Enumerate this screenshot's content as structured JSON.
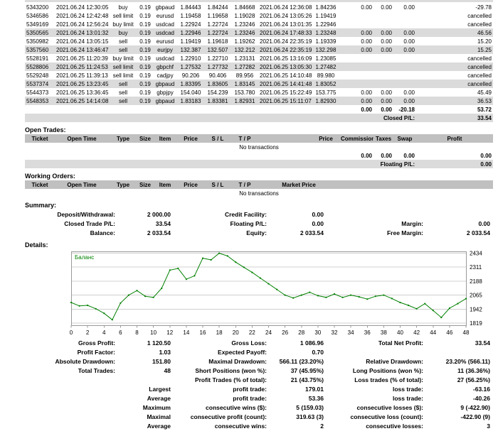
{
  "colors": {
    "header_bg": "#C0C0C0",
    "row_shade": "#DBDBDB",
    "chart_line": "#008000",
    "grid_line": "#D0D0D0",
    "chart_border": "#999999"
  },
  "history": {
    "cancelled_label": "cancelled",
    "rows": [
      {
        "ticket": "5343200",
        "open_time": "2021.06.24 12:30:05",
        "type": "buy",
        "size": "0.19",
        "item": "gbpaud",
        "price": "1.84443",
        "sl": "1.84244",
        "tp": "1.84668",
        "close_time": "2021.06.24 12:36:08",
        "close_price": "1.84236",
        "commission": "0.00",
        "taxes": "0.00",
        "swap": "0.00",
        "profit": "-29.78",
        "cancelled": false,
        "shaded": false
      },
      {
        "ticket": "5346586",
        "open_time": "2021.06.24 12:42:48",
        "type": "sell limit",
        "size": "0.19",
        "item": "eurusd",
        "price": "1.19458",
        "sl": "1.19658",
        "tp": "1.19028",
        "close_time": "2021.06.24 13:05:26",
        "close_price": "1.19419",
        "commission": "",
        "taxes": "",
        "swap": "",
        "profit": "",
        "cancelled": true,
        "shaded": false
      },
      {
        "ticket": "5349169",
        "open_time": "2021.06.24 12:56:24",
        "type": "buy limit",
        "size": "0.19",
        "item": "usdcad",
        "price": "1.22924",
        "sl": "1.22724",
        "tp": "1.23246",
        "close_time": "2021.06.24 13:01:35",
        "close_price": "1.22946",
        "commission": "",
        "taxes": "",
        "swap": "",
        "profit": "",
        "cancelled": true,
        "shaded": false
      },
      {
        "ticket": "5350565",
        "open_time": "2021.06.24 13:01:32",
        "type": "buy",
        "size": "0.19",
        "item": "usdcad",
        "price": "1.22946",
        "sl": "1.22724",
        "tp": "1.23246",
        "close_time": "2021.06.24 17:48:33",
        "close_price": "1.23248",
        "commission": "0.00",
        "taxes": "0.00",
        "swap": "0.00",
        "profit": "46.56",
        "cancelled": false,
        "shaded": true
      },
      {
        "ticket": "5350982",
        "open_time": "2021.06.24 13:05:15",
        "type": "sell",
        "size": "0.19",
        "item": "eurusd",
        "price": "1.19419",
        "sl": "1.19618",
        "tp": "1.19262",
        "close_time": "2021.06.24 22:35:19",
        "close_price": "1.19339",
        "commission": "0.00",
        "taxes": "0.00",
        "swap": "0.00",
        "profit": "15.20",
        "cancelled": false,
        "shaded": false
      },
      {
        "ticket": "5357560",
        "open_time": "2021.06.24 13:46:47",
        "type": "sell",
        "size": "0.19",
        "item": "eurjpy",
        "price": "132.387",
        "sl": "132.507",
        "tp": "132.212",
        "close_time": "2021.06.24 22:35:19",
        "close_price": "132.298",
        "commission": "0.00",
        "taxes": "0.00",
        "swap": "0.00",
        "profit": "15.25",
        "cancelled": false,
        "shaded": true
      },
      {
        "ticket": "5528191",
        "open_time": "2021.06.25 11:20:39",
        "type": "buy limit",
        "size": "0.19",
        "item": "usdcad",
        "price": "1.22910",
        "sl": "1.22710",
        "tp": "1.23131",
        "close_time": "2021.06.25 13:16:09",
        "close_price": "1.23085",
        "commission": "",
        "taxes": "",
        "swap": "",
        "profit": "",
        "cancelled": true,
        "shaded": false
      },
      {
        "ticket": "5528806",
        "open_time": "2021.06.25 11:24:53",
        "type": "sell limit",
        "size": "0.19",
        "item": "gbpchf",
        "price": "1.27532",
        "sl": "1.27732",
        "tp": "1.27282",
        "close_time": "2021.06.25 13:05:30",
        "close_price": "1.27482",
        "commission": "",
        "taxes": "",
        "swap": "",
        "profit": "",
        "cancelled": true,
        "shaded": true
      },
      {
        "ticket": "5529248",
        "open_time": "2021.06.25 11:39:13",
        "type": "sell limit",
        "size": "0.19",
        "item": "cadjpy",
        "price": "90.206",
        "sl": "90.406",
        "tp": "89.956",
        "close_time": "2021.06.25 14:10:48",
        "close_price": "89.980",
        "commission": "",
        "taxes": "",
        "swap": "",
        "profit": "",
        "cancelled": true,
        "shaded": false
      },
      {
        "ticket": "5537374",
        "open_time": "2021.06.25 13:23:45",
        "type": "sell",
        "size": "0.19",
        "item": "gbpaud",
        "price": "1.83395",
        "sl": "1.83605",
        "tp": "1.83145",
        "close_time": "2021.06.25 14:41:48",
        "close_price": "1.83052",
        "commission": "",
        "taxes": "",
        "swap": "",
        "profit": "",
        "cancelled": true,
        "shaded": true
      },
      {
        "ticket": "5544373",
        "open_time": "2021.06.25 13:36:45",
        "type": "sell",
        "size": "0.19",
        "item": "gbpjpy",
        "price": "154.040",
        "sl": "154.239",
        "tp": "153.780",
        "close_time": "2021.06.25 15:22:49",
        "close_price": "153.775",
        "commission": "0.00",
        "taxes": "0.00",
        "swap": "0.00",
        "profit": "45.49",
        "cancelled": false,
        "shaded": false
      },
      {
        "ticket": "5548353",
        "open_time": "2021.06.25 14:14:08",
        "type": "sell",
        "size": "0.19",
        "item": "gbpaud",
        "price": "1.83183",
        "sl": "1.83381",
        "tp": "1.82931",
        "close_time": "2021.06.25 15:11:07",
        "close_price": "1.82930",
        "commission": "0.00",
        "taxes": "0.00",
        "swap": "0.00",
        "profit": "36.53",
        "cancelled": false,
        "shaded": true
      }
    ],
    "totals": {
      "commission": "0.00",
      "taxes": "0.00",
      "swap": "-20.18",
      "profit": "53.72"
    },
    "closed_pl_label": "Closed P/L:",
    "closed_pl_value": "33.54"
  },
  "open_trades": {
    "title": "Open Trades:",
    "headers": [
      "Ticket",
      "Open Time",
      "Type",
      "Size",
      "Item",
      "Price",
      "S / L",
      "T / P",
      "",
      "Price",
      "Commission",
      "Taxes",
      "Swap",
      "Profit"
    ],
    "empty": "No transactions",
    "totals": [
      "0.00",
      "0.00",
      "0.00",
      "0.00"
    ],
    "floating_label": "Floating P/L:",
    "floating_value": "0.00"
  },
  "working_orders": {
    "title": "Working Orders:",
    "headers": [
      "Ticket",
      "Open Time",
      "Type",
      "Size",
      "Item",
      "Price",
      "S / L",
      "T / P",
      "Market Price",
      ""
    ],
    "empty": "No transactions"
  },
  "summary": {
    "title": "Summary:",
    "rows": [
      [
        "Deposit/Withdrawal:",
        "2 000.00",
        "Credit Facility:",
        "0.00",
        "",
        ""
      ],
      [
        "Closed Trade P/L:",
        "33.54",
        "Floating P/L:",
        "0.00",
        "Margin:",
        "0.00"
      ],
      [
        "Balance:",
        "2 033.54",
        "Equity:",
        "2 033.54",
        "Free Margin:",
        "2 033.54"
      ]
    ]
  },
  "details": {
    "title": "Details:"
  },
  "chart_data": {
    "type": "line",
    "title": "",
    "legend": [
      "Баланс"
    ],
    "legend_position": "top-left",
    "grid": true,
    "xlabel": "",
    "ylabel": "",
    "ylim": [
      1800,
      2450
    ],
    "ytick_labels": [
      2434,
      2311,
      2188,
      2065,
      1942,
      1819
    ],
    "xtick_step": 2,
    "x_max": 48,
    "series": [
      {
        "name": "Баланс",
        "values": [
          2000,
          1970,
          1975,
          1945,
          1905,
          1848,
          1995,
          2065,
          2105,
          2055,
          2045,
          2125,
          2285,
          2300,
          2205,
          2235,
          2390,
          2375,
          2434,
          2410,
          2355,
          2310,
          2265,
          2215,
          2165,
          2115,
          2065,
          2040,
          2065,
          2090,
          2060,
          2045,
          2075,
          2045,
          2065,
          2050,
          2030,
          2055,
          2065,
          2035,
          2000,
          1975,
          1945,
          1990,
          1930,
          1868,
          1950,
          1990,
          2033.54
        ]
      }
    ]
  },
  "stats": {
    "rows": [
      [
        "Gross Profit:",
        "1 120.50",
        "Gross Loss:",
        "1 086.96",
        "Total Net Profit:",
        "33.54"
      ],
      [
        "Profit Factor:",
        "1.03",
        "Expected Payoff:",
        "0.70",
        "",
        ""
      ],
      [
        "Absolute Drawdown:",
        "151.80",
        "Maximal Drawdown:",
        "566.11 (23.20%)",
        "Relative Drawdown:",
        "23.20% (566.11)"
      ],
      [
        "Total Trades:",
        "48",
        "Short Positions (won %):",
        "37 (45.95%)",
        "Long Positions (won %):",
        "11 (36.36%)"
      ],
      [
        "",
        "",
        "Profit Trades (% of total):",
        "21 (43.75%)",
        "Loss trades (% of total):",
        "27 (56.25%)"
      ],
      [
        "",
        "Largest",
        "profit trade:",
        "179.01",
        "loss trade:",
        "-63.16"
      ],
      [
        "",
        "Average",
        "profit trade:",
        "53.36",
        "loss trade:",
        "-40.26"
      ],
      [
        "",
        "Maximum",
        "consecutive wins ($):",
        "5 (159.03)",
        "consecutive losses ($):",
        "9 (-422.90)"
      ],
      [
        "",
        "Maximal",
        "consecutive profit (count):",
        "319.63 (3)",
        "consecutive loss (count):",
        "-422.90 (9)"
      ],
      [
        "",
        "Average",
        "consecutive wins:",
        "2",
        "consecutive losses:",
        "3"
      ]
    ]
  }
}
